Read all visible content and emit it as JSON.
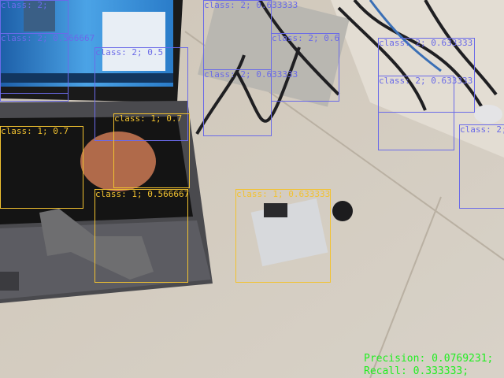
{
  "colors": {
    "class1_box": "#f2c230",
    "class2_box": "#6a6ae8",
    "metric_text": "#22ee22"
  },
  "detections": [
    {
      "label": "class: 2; ",
      "cls": 2
    },
    {
      "label": "class: 2; 0.566667",
      "cls": 2
    },
    {
      "label": "class: 2; 0.5",
      "cls": 2
    },
    {
      "label": "class: 2; 0.633333",
      "cls": 2
    },
    {
      "label": "class: 2; 0.633333",
      "cls": 2
    },
    {
      "label": "class: 2; 0.6",
      "cls": 2
    },
    {
      "label": "class: 2; 0.633333",
      "cls": 2
    },
    {
      "label": "class: 2; 0.633333",
      "cls": 2
    },
    {
      "label": "class: 2; ",
      "cls": 2
    },
    {
      "label": "class: 1; 0.7",
      "cls": 1
    },
    {
      "label": "class: 1; 0.7",
      "cls": 1
    },
    {
      "label": "class: 1; 0.566667",
      "cls": 1
    },
    {
      "label": "class: 1; 0.633333",
      "cls": 1
    }
  ],
  "metrics": {
    "precision": "Precision: 0.0769231;",
    "recall": "Recall: 0.333333;"
  }
}
